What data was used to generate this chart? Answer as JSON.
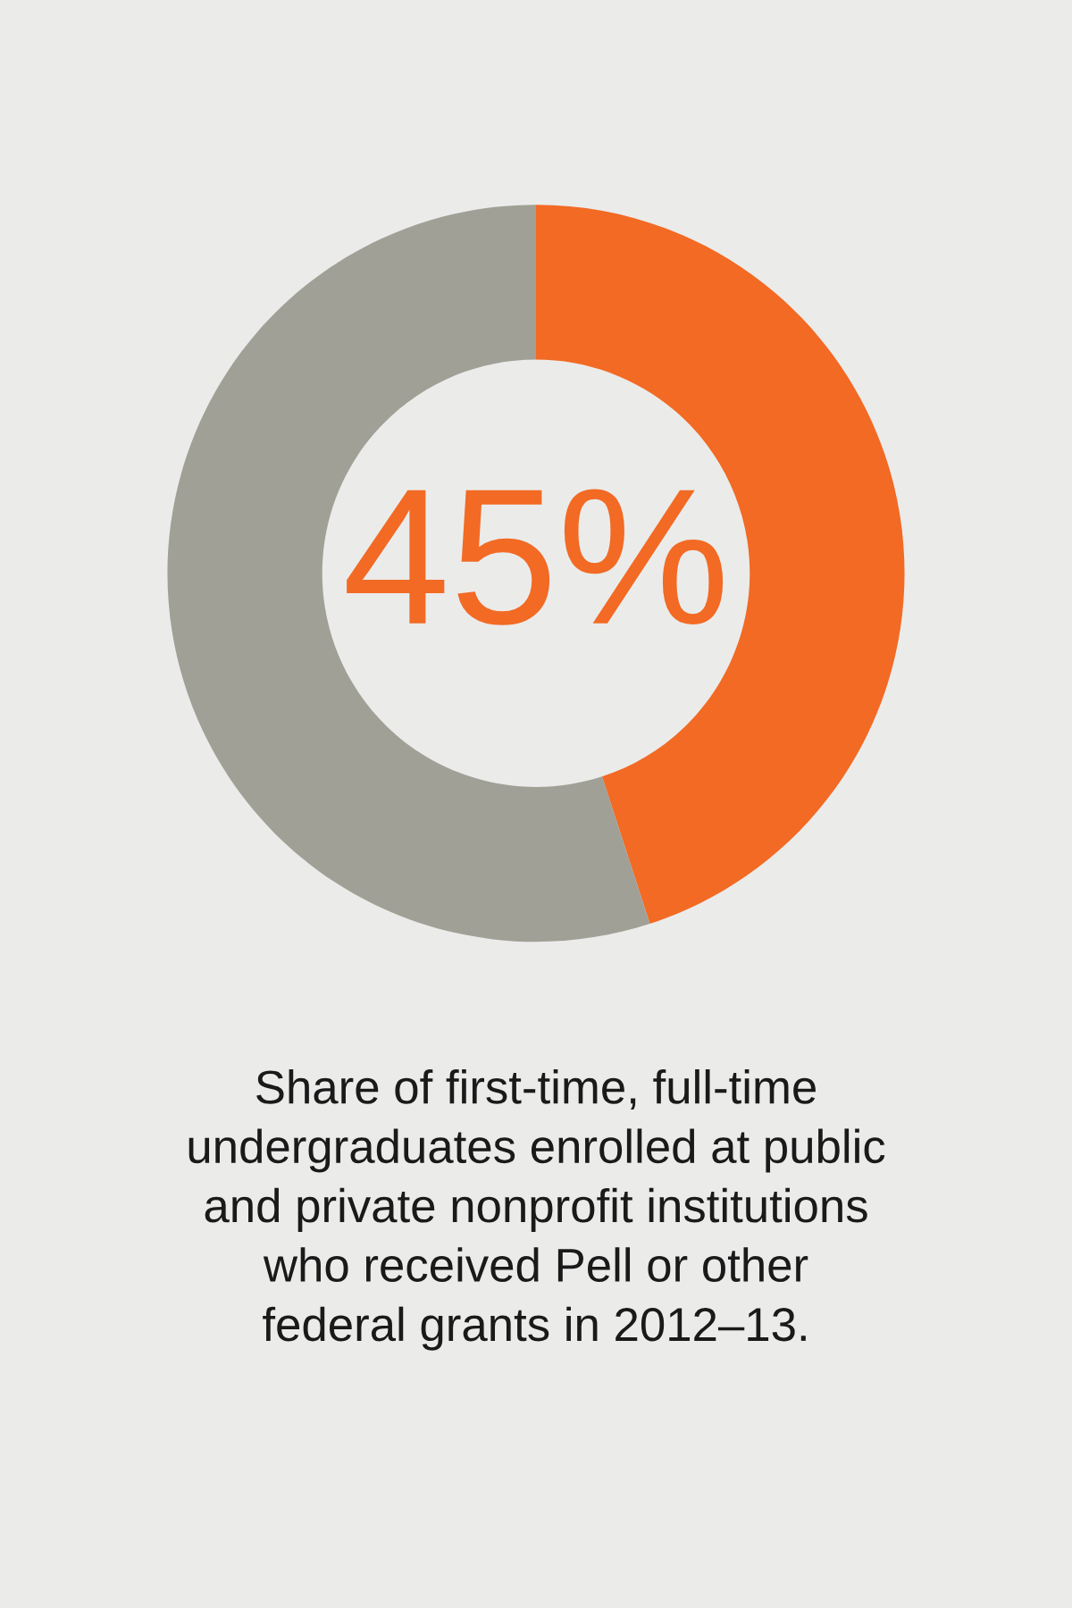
{
  "chart_data": {
    "type": "donut",
    "categories": [
      null,
      null
    ],
    "values": [
      45,
      55
    ],
    "colors": [
      "#f26a24",
      "#a0a097"
    ],
    "value_labels": [
      "45%",
      null
    ],
    "annotations": [
      "Share of first-time, full-time\nundergraduates enrolled at public\nand private nonprofit institutions\nwho received Pell or other\nfederal grants in 2012–13."
    ]
  }
}
